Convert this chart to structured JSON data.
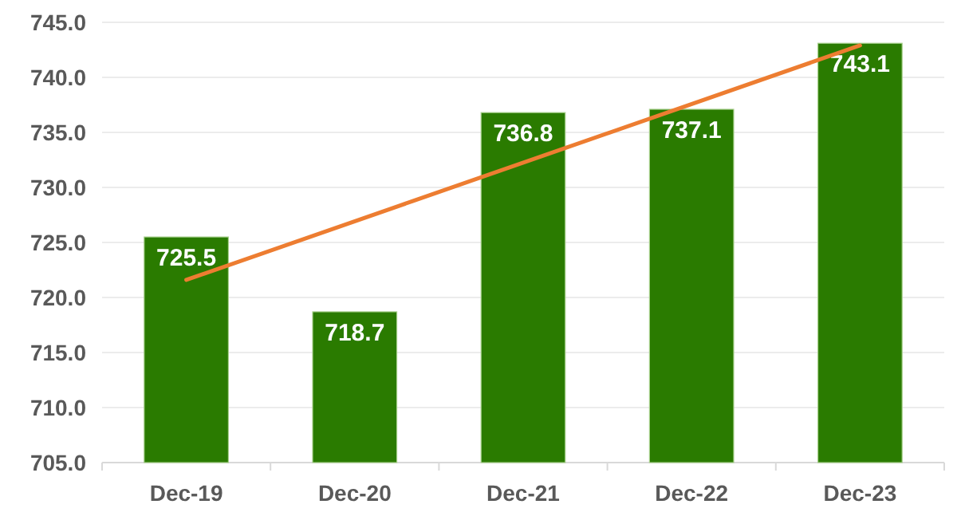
{
  "chart_data": {
    "type": "bar",
    "categories": [
      "Dec-19",
      "Dec-20",
      "Dec-21",
      "Dec-22",
      "Dec-23"
    ],
    "series": [
      {
        "color": "#2a7b00",
        "values": [
          725.5,
          718.7,
          736.8,
          737.1,
          743.1
        ],
        "value_labels": [
          "725.5",
          "718.7",
          "736.8",
          "737.1",
          "743.1"
        ]
      },
      {
        "type": "line",
        "color": "#ed7d31",
        "x": [
          "Dec-19",
          "Dec-23"
        ],
        "values": [
          721.6,
          742.9
        ]
      }
    ],
    "ylim": [
      705,
      745
    ],
    "yticks": [
      {
        "value": 705,
        "label": "705.0"
      },
      {
        "value": 710,
        "label": "710.0"
      },
      {
        "value": 715,
        "label": "715.0"
      },
      {
        "value": 720,
        "label": "720.0"
      },
      {
        "value": 725,
        "label": "725.0"
      },
      {
        "value": 730,
        "label": "730.0"
      },
      {
        "value": 735,
        "label": "735.0"
      },
      {
        "value": 740,
        "label": "740.0"
      },
      {
        "value": 745,
        "label": "745.0"
      }
    ],
    "grid": "y"
  }
}
